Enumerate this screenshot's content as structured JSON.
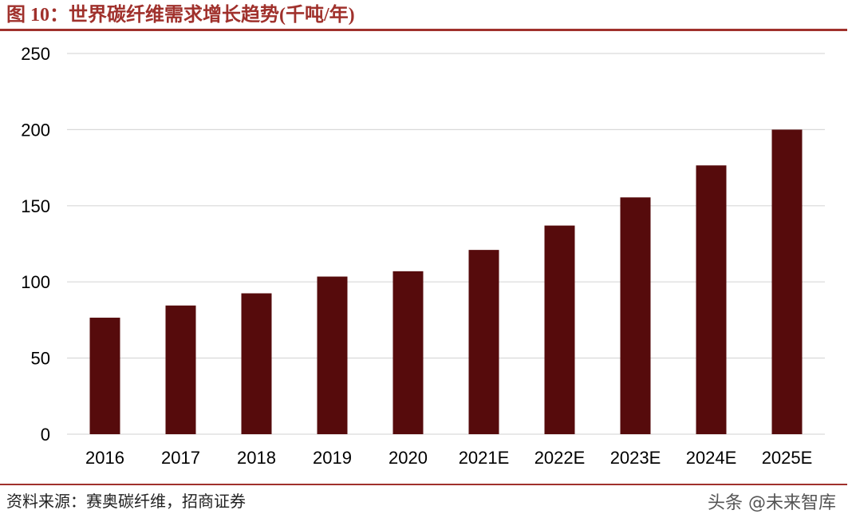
{
  "header": {
    "title": "图 10：世界碳纤维需求增长趋势(千吨/年)"
  },
  "footer": {
    "source": "资料来源：赛奥碳纤维，招商证券",
    "watermark": "头条 @未来智库"
  },
  "colors": {
    "accent": "#a0312c",
    "bar": "#560b0c",
    "grid": "#d9d9d9"
  },
  "chart_data": {
    "type": "bar",
    "title": "图 10：世界碳纤维需求增长趋势(千吨/年)",
    "xlabel": "",
    "ylabel": "",
    "categories": [
      "2016",
      "2017",
      "2018",
      "2019",
      "2020",
      "2021E",
      "2022E",
      "2023E",
      "2024E",
      "2025E"
    ],
    "values": [
      76.5,
      84.5,
      92.5,
      103.5,
      107,
      121,
      137,
      155.5,
      176.5,
      200
    ],
    "ylim": [
      0,
      250
    ],
    "yticks": [
      "0",
      "50",
      "100",
      "150",
      "200",
      "250"
    ],
    "grid": true,
    "legend": "none"
  }
}
